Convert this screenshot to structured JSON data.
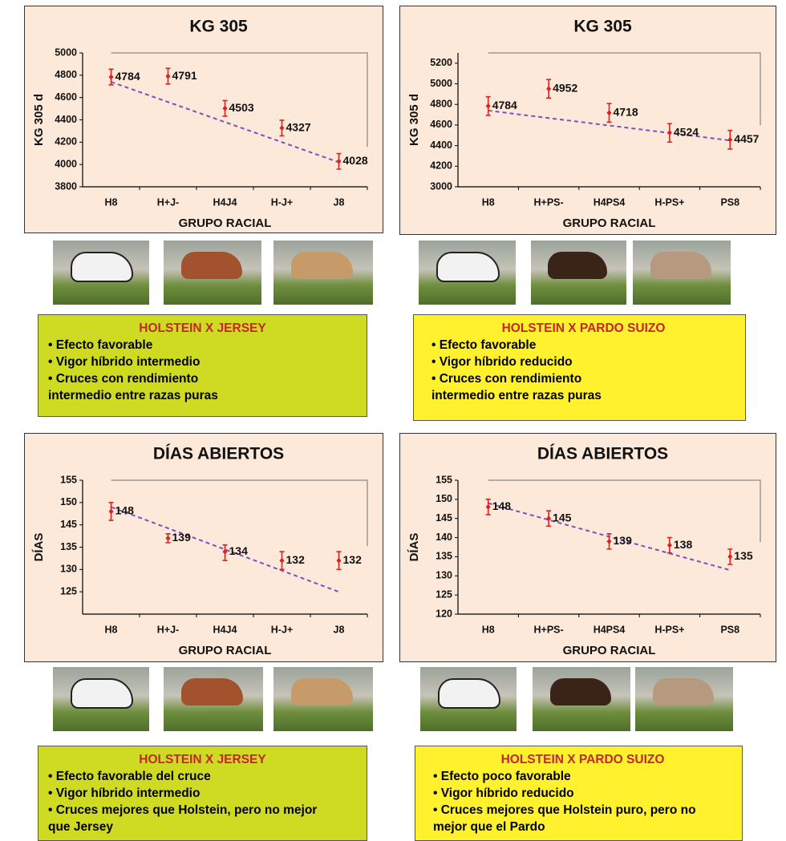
{
  "chart_data": [
    {
      "type": "line",
      "title": "KG 305",
      "y_label": "KG 305 d",
      "x_label": "GRUPO RACIAL",
      "categories": [
        "H8",
        "H+J-",
        "H4J4",
        "H-J+",
        "J8"
      ],
      "values": [
        4784,
        4791,
        4503,
        4327,
        4028
      ],
      "errors": [
        70,
        70,
        70,
        70,
        70
      ],
      "color": "#e0201c",
      "trendline": {
        "color": "#7b4fc4",
        "values": [
          4740,
          4020
        ]
      },
      "ylim": [
        3800,
        5000
      ],
      "yticks": [
        3800,
        4000,
        4200,
        4400,
        4600,
        4800,
        5000
      ]
    },
    {
      "type": "line",
      "title": "KG 305",
      "y_label": "KG 305 d",
      "x_label": "GRUPO RACIAL",
      "categories": [
        "H8",
        "H+PS-",
        "H4PS4",
        "H-PS+",
        "PS8"
      ],
      "values": [
        4784,
        4952,
        4718,
        4524,
        4457
      ],
      "errors": [
        90,
        90,
        90,
        90,
        90
      ],
      "color": "#e0201c",
      "trendline": {
        "color": "#7b4fc4",
        "values": [
          4740,
          4450
        ]
      },
      "ylim": [
        3000,
        5300
      ],
      "yticks": [
        3000,
        4200,
        4400,
        4600,
        4800,
        5000,
        5200
      ]
    },
    {
      "type": "line",
      "title": "DÍAS ABIERTOS",
      "y_label": "DÍAS",
      "x_label": "GRUPO RACIAL",
      "categories": [
        "H8",
        "H+J-",
        "H4J4",
        "H-J+",
        "J8"
      ],
      "values": [
        148,
        139,
        134,
        132,
        132
      ],
      "errors": [
        2,
        2,
        2,
        2,
        2
      ],
      "color": "#e0201c",
      "trendline": {
        "color": "#7b4fc4",
        "values": [
          149,
          125
        ]
      },
      "ylim": [
        120,
        155
      ],
      "yticks": [
        125,
        130,
        135,
        145,
        150,
        155
      ]
    },
    {
      "type": "line",
      "title": "DÍAS ABIERTOS",
      "y_label": "DÍAS",
      "x_label": "GRUPO RACIAL",
      "categories": [
        "H8",
        "H+PS-",
        "H4PS4",
        "H-PS+",
        "PS8"
      ],
      "values": [
        148,
        145,
        139,
        138,
        135
      ],
      "errors": [
        2,
        2,
        2,
        2,
        2
      ],
      "color": "#e0201c",
      "trendline": {
        "color": "#7b4fc4",
        "values": [
          149,
          131.5
        ]
      },
      "ylim": [
        120,
        155
      ],
      "yticks": [
        120,
        125,
        130,
        135,
        140,
        145,
        150,
        155
      ]
    }
  ],
  "boxes": [
    {
      "title": "HOLSTEIN X JERSEY",
      "items": [
        "Efecto favorable",
        "Vigor híbrido intermedio",
        "Cruces con rendimiento intermedio entre razas puras"
      ]
    },
    {
      "title": "HOLSTEIN X PARDO SUIZO",
      "items": [
        "Efecto favorable",
        "Vigor híbrido reducido",
        "Cruces con rendimiento intermedio entre razas puras"
      ]
    },
    {
      "title": "HOLSTEIN X JERSEY",
      "items": [
        "Efecto favorable del cruce",
        "Vigor híbrido intermedio",
        "Cruces mejores que Holstein, pero no mejor que Jersey"
      ]
    },
    {
      "title": "HOLSTEIN X PARDO SUIZO",
      "items": [
        "Efecto poco favorable",
        "Vigor híbrido reducido",
        "Cruces mejores que Holstein puro, pero no mejor que el Pardo"
      ]
    }
  ]
}
